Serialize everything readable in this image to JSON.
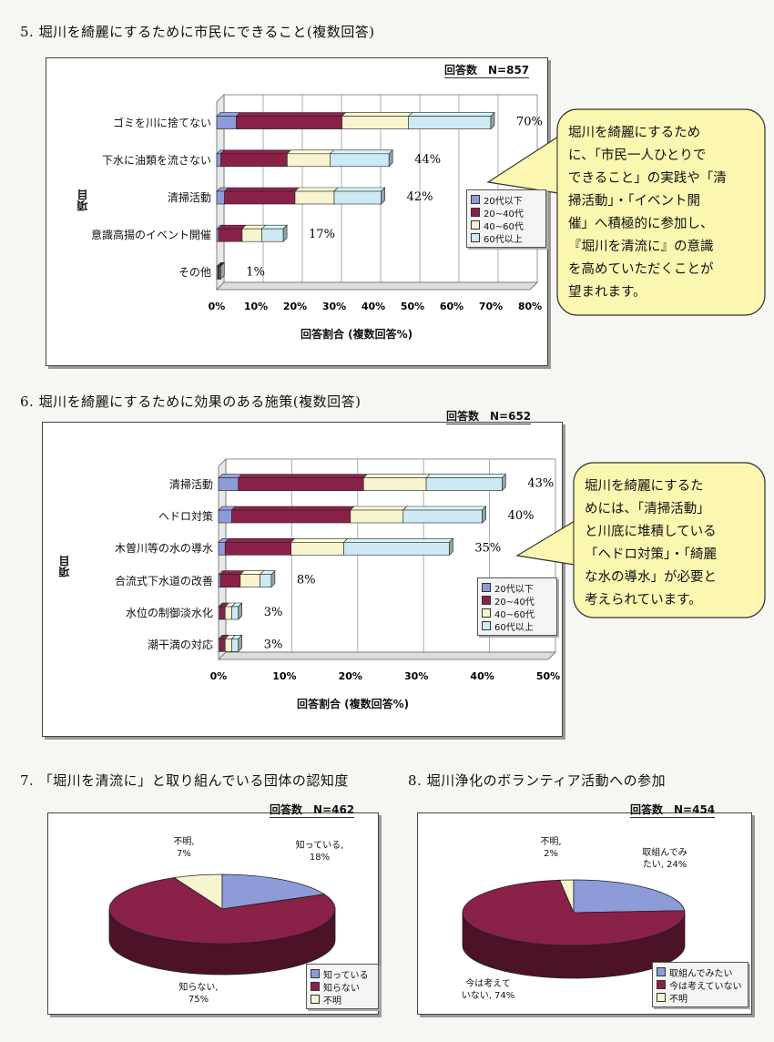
{
  "colors": {
    "c1": "#8d9bd8",
    "c2": "#8a2149",
    "c3": "#f7f4cf",
    "c4": "#cdeaf2",
    "bubble": "#fbf7b0"
  },
  "q5": {
    "title": "5. 堀川を綺麗にするために市民にできること(複数回答)",
    "n_label": "回答数　N=857",
    "xlabel": "回答割合 (複数回答%)",
    "ylabel": "項目",
    "ticks": [
      "0%",
      "10%",
      "20%",
      "30%",
      "40%",
      "50%",
      "60%",
      "70%",
      "80%"
    ],
    "legend": [
      "20代以下",
      "20~40代",
      "40~60代",
      "60代以上"
    ],
    "bubble_lines": [
      "堀川を綺麗にするため",
      "に、「市民一人ひとりで",
      "できること」の実践や「清",
      "掃活動」・「イベント開",
      "催」へ積極的に参加し、",
      "『堀川を清流に』の意識",
      "を高めていただくことが",
      "望まれます。"
    ]
  },
  "q6": {
    "title": "6. 堀川を綺麗にするために効果のある施策(複数回答)",
    "n_label": "回答数　N=652",
    "xlabel": "回答割合 (複数回答%)",
    "ylabel": "項目",
    "ticks": [
      "0%",
      "10%",
      "20%",
      "30%",
      "40%",
      "50%"
    ],
    "legend": [
      "20代以下",
      "20~40代",
      "40~60代",
      "60代以上"
    ],
    "bubble_lines": [
      "堀川を綺麗にするた",
      "めには、「清掃活動」",
      "と川底に堆積している",
      "「ヘドロ対策」・「綺麗",
      "な水の導水」が必要と",
      "考えられています。"
    ]
  },
  "q7": {
    "title": "7. 「堀川を清流に」と取り組んでいる団体の認知度",
    "n_label": "回答数　N=462",
    "slice_labels": [
      [
        "知っている,",
        "18%"
      ],
      [
        "知らない,",
        "75%"
      ],
      [
        "不明,",
        "7%"
      ]
    ],
    "legend": [
      "知っている",
      "知らない",
      "不明"
    ]
  },
  "q8": {
    "title": "8. 堀川浄化のボランティア活動への参加",
    "n_label": "回答数　N=454",
    "slice_labels": [
      [
        "取組んでみ",
        "たい, 24%"
      ],
      [
        "今は考えて",
        "いない, 74%"
      ],
      [
        "不明,",
        "2%"
      ]
    ],
    "legend": [
      "取組んでみたい",
      "今は考えていない",
      "不明"
    ]
  },
  "chart_data": [
    {
      "type": "bar",
      "title": "5. 堀川を綺麗にするために市民にできること(複数回答)",
      "xlabel": "回答割合 (複数回答%)",
      "ylabel": "項目",
      "xlim": [
        0,
        80
      ],
      "orientation": "horizontal",
      "stacked": true,
      "categories": [
        "ゴミを川に捨てない",
        "下水に油類を流さない",
        "清掃活動",
        "意識高揚のイベント開催",
        "その他"
      ],
      "totals_labels": [
        "70%",
        "44%",
        "42%",
        "17%",
        "1%"
      ],
      "series": [
        {
          "name": "20代以下",
          "values": [
            5,
            1,
            2,
            0.5,
            0.3
          ]
        },
        {
          "name": "20~40代",
          "values": [
            27,
            17,
            18,
            6,
            0.3
          ]
        },
        {
          "name": "40~60代",
          "values": [
            17,
            11,
            10,
            5,
            0.2
          ]
        },
        {
          "name": "60代以上",
          "values": [
            21,
            15,
            12,
            5.5,
            0.2
          ]
        }
      ],
      "legend_position": "right"
    },
    {
      "type": "bar",
      "title": "6. 堀川を綺麗にするために効果のある施策(複数回答)",
      "xlabel": "回答割合 (複数回答%)",
      "ylabel": "項目",
      "xlim": [
        0,
        50
      ],
      "orientation": "horizontal",
      "stacked": true,
      "categories": [
        "清掃活動",
        "ヘドロ対策",
        "木曽川等の水の導水",
        "合流式下水道の改善",
        "水位の制御淡水化",
        "潮干満の対応"
      ],
      "totals_labels": [
        "43%",
        "40%",
        "35%",
        "8%",
        "3%",
        "3%"
      ],
      "series": [
        {
          "name": "20代以下",
          "values": [
            3,
            2,
            1,
            0.3,
            0.2,
            0.2
          ]
        },
        {
          "name": "20~40代",
          "values": [
            19,
            18,
            10,
            3,
            0.8,
            0.8
          ]
        },
        {
          "name": "40~60代",
          "values": [
            9.5,
            8,
            8,
            3,
            1,
            1
          ]
        },
        {
          "name": "60代以上",
          "values": [
            11.5,
            12,
            16,
            1.7,
            1,
            1
          ]
        }
      ],
      "legend_position": "right"
    },
    {
      "type": "pie",
      "title": "7. 「堀川を清流に」と取り組んでいる団体の認知度",
      "categories": [
        "知っている",
        "知らない",
        "不明"
      ],
      "values": [
        18,
        75,
        7
      ]
    },
    {
      "type": "pie",
      "title": "8. 堀川浄化のボランティア活動への参加",
      "categories": [
        "取組んでみたい",
        "今は考えていない",
        "不明"
      ],
      "values": [
        24,
        74,
        2
      ]
    }
  ]
}
